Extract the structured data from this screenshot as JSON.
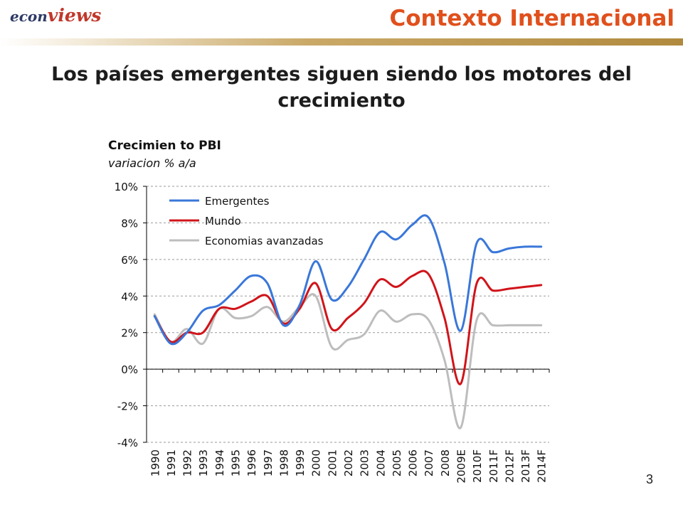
{
  "header": {
    "logo_econ": "econ",
    "logo_views": "views",
    "title": "Contexto Internacional"
  },
  "slide": {
    "title": "Los países emergentes siguen siendo los motores del crecimiento",
    "page_number": "3"
  },
  "colors": {
    "header_title": "#e0501c",
    "emergentes": "#3a77d9",
    "mundo": "#d0141a",
    "avanzadas": "#bdbdbd"
  },
  "chart_data": {
    "type": "line",
    "title": "Crecimien to PBI",
    "subtitle": "variacion % a/a",
    "xlabel": "",
    "ylabel": "",
    "ylim": [
      -4,
      10
    ],
    "yticks": [
      -4,
      -2,
      0,
      2,
      4,
      6,
      8,
      10
    ],
    "ytick_labels": [
      "-4%",
      "-2%",
      "0%",
      "2%",
      "4%",
      "6%",
      "8%",
      "10%"
    ],
    "grid": "horizontal dashed",
    "legend_position": "top-left",
    "categories": [
      "1990",
      "1991",
      "1992",
      "1993",
      "1994",
      "1995",
      "1996",
      "1997",
      "1998",
      "1999",
      "2000",
      "2001",
      "2002",
      "2003",
      "2004",
      "2005",
      "2006",
      "2007",
      "2008",
      "2009E",
      "2010F",
      "2011F",
      "2012F",
      "2013F",
      "2014F"
    ],
    "series": [
      {
        "name": "Emergentes",
        "color": "#3a77d9",
        "values": [
          2.9,
          1.4,
          2.0,
          3.2,
          3.5,
          4.3,
          5.1,
          4.7,
          2.4,
          3.5,
          5.9,
          3.8,
          4.5,
          6.0,
          7.5,
          7.1,
          7.9,
          8.3,
          5.8,
          2.1,
          6.9,
          6.4,
          6.6,
          6.7,
          6.7
        ]
      },
      {
        "name": "Mundo",
        "color": "#d0141a",
        "values": [
          2.9,
          1.5,
          2.0,
          2.0,
          3.3,
          3.3,
          3.7,
          4.0,
          2.5,
          3.3,
          4.7,
          2.2,
          2.8,
          3.6,
          4.9,
          4.5,
          5.1,
          5.2,
          2.8,
          -0.8,
          4.7,
          4.3,
          4.4,
          4.5,
          4.6
        ]
      },
      {
        "name": "Economias avanzadas",
        "color": "#bdbdbd",
        "values": [
          3.0,
          1.5,
          2.2,
          1.4,
          3.3,
          2.8,
          2.9,
          3.4,
          2.6,
          3.4,
          4.0,
          1.2,
          1.6,
          1.9,
          3.2,
          2.6,
          3.0,
          2.7,
          0.5,
          -3.2,
          2.7,
          2.4,
          2.4,
          2.4,
          2.4
        ]
      }
    ]
  }
}
